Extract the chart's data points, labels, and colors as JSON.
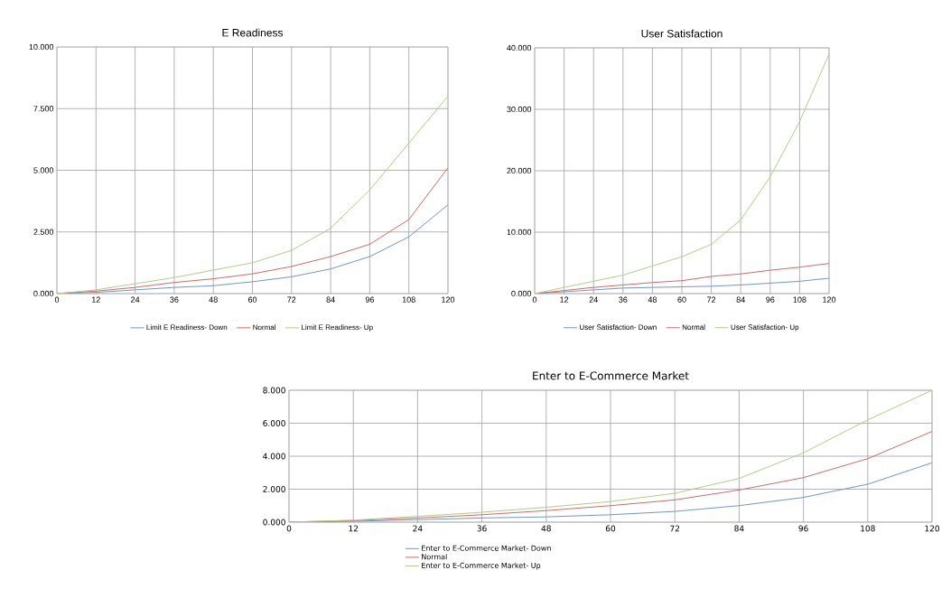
{
  "chart_data": [
    {
      "type": "line",
      "title": "E Readiness",
      "x": [
        0,
        12,
        24,
        36,
        48,
        60,
        72,
        84,
        96,
        108,
        120
      ],
      "xlim": [
        0,
        120
      ],
      "xticks": [
        0,
        12,
        24,
        36,
        48,
        60,
        72,
        84,
        96,
        108,
        120
      ],
      "ylim": [
        0,
        10
      ],
      "yticks": [
        {
          "value": 0,
          "label": "0.000"
        },
        {
          "value": 2.5,
          "label": "2.500"
        },
        {
          "value": 5,
          "label": "5.000"
        },
        {
          "value": 7.5,
          "label": "7.500"
        },
        {
          "value": 10,
          "label": "10.000"
        }
      ],
      "grid": true,
      "legend": "bottom",
      "marker": "none",
      "series": [
        {
          "name": "Limit E Readiness- Down",
          "color": "#6f96c8",
          "values": [
            0,
            0.05,
            0.15,
            0.25,
            0.32,
            0.48,
            0.68,
            1.0,
            1.5,
            2.3,
            3.6
          ]
        },
        {
          "name": "Normal",
          "color": "#cd6b69",
          "values": [
            0,
            0.1,
            0.25,
            0.45,
            0.6,
            0.8,
            1.1,
            1.5,
            2.0,
            3.0,
            5.1
          ]
        },
        {
          "name": "Limit E Readiness- Up",
          "color": "#b3cc85",
          "values": [
            0,
            0.15,
            0.4,
            0.65,
            0.95,
            1.25,
            1.75,
            2.65,
            4.2,
            6.1,
            8.0
          ]
        }
      ]
    },
    {
      "type": "line",
      "title": "User Satisfaction",
      "x": [
        0,
        12,
        24,
        36,
        48,
        60,
        72,
        84,
        96,
        108,
        120
      ],
      "xlim": [
        0,
        120
      ],
      "xticks": [
        0,
        12,
        24,
        36,
        48,
        60,
        72,
        84,
        96,
        108,
        120
      ],
      "ylim": [
        0,
        40
      ],
      "yticks": [
        {
          "value": 0,
          "label": "0.000"
        },
        {
          "value": 10,
          "label": "10.000"
        },
        {
          "value": 20,
          "label": "20.000"
        },
        {
          "value": 30,
          "label": "30.000"
        },
        {
          "value": 40,
          "label": "40.000"
        }
      ],
      "grid": true,
      "legend": "bottom",
      "marker": "none",
      "series": [
        {
          "name": "User Satisfaction- Down",
          "color": "#6f96c8",
          "values": [
            0,
            0.3,
            0.6,
            0.9,
            1.0,
            1.1,
            1.2,
            1.4,
            1.7,
            2.0,
            2.5
          ]
        },
        {
          "name": "Normal",
          "color": "#cd6b69",
          "values": [
            0,
            0.5,
            1.0,
            1.4,
            1.8,
            2.1,
            2.8,
            3.2,
            3.8,
            4.3,
            4.9
          ]
        },
        {
          "name": "User Satisfaction- Up",
          "color": "#b3cc85",
          "values": [
            0,
            1.0,
            2.0,
            3.0,
            4.5,
            6.0,
            8.0,
            12.0,
            19.0,
            28.0,
            39.0
          ]
        }
      ]
    },
    {
      "type": "line",
      "title": "Enter to E-Commerce Market",
      "x": [
        0,
        12,
        24,
        36,
        48,
        60,
        72,
        84,
        96,
        108,
        120
      ],
      "xlim": [
        0,
        120
      ],
      "xticks": [
        0,
        12,
        24,
        36,
        48,
        60,
        72,
        84,
        96,
        108,
        120
      ],
      "ylim": [
        0,
        8
      ],
      "yticks": [
        {
          "value": 0,
          "label": "0.000"
        },
        {
          "value": 2,
          "label": "2.000"
        },
        {
          "value": 4,
          "label": "4.000"
        },
        {
          "value": 6,
          "label": "6.000"
        },
        {
          "value": 8,
          "label": "8.000"
        }
      ],
      "grid": true,
      "legend": "bottom left",
      "marker": "none",
      "series": [
        {
          "name": "Enter to E-Commerce Market- Down",
          "color": "#6f96c8",
          "values": [
            0,
            0.05,
            0.15,
            0.25,
            0.32,
            0.45,
            0.65,
            1.0,
            1.5,
            2.3,
            3.6
          ]
        },
        {
          "name": "Normal",
          "color": "#cd6b69",
          "values": [
            0,
            0.1,
            0.25,
            0.45,
            0.7,
            1.0,
            1.35,
            1.95,
            2.7,
            3.85,
            5.5
          ]
        },
        {
          "name": "Enter to E-Commerce Market- Up",
          "color": "#b3cc85",
          "values": [
            0,
            0.12,
            0.35,
            0.6,
            0.9,
            1.25,
            1.75,
            2.65,
            4.2,
            6.2,
            8.0
          ]
        }
      ]
    }
  ]
}
